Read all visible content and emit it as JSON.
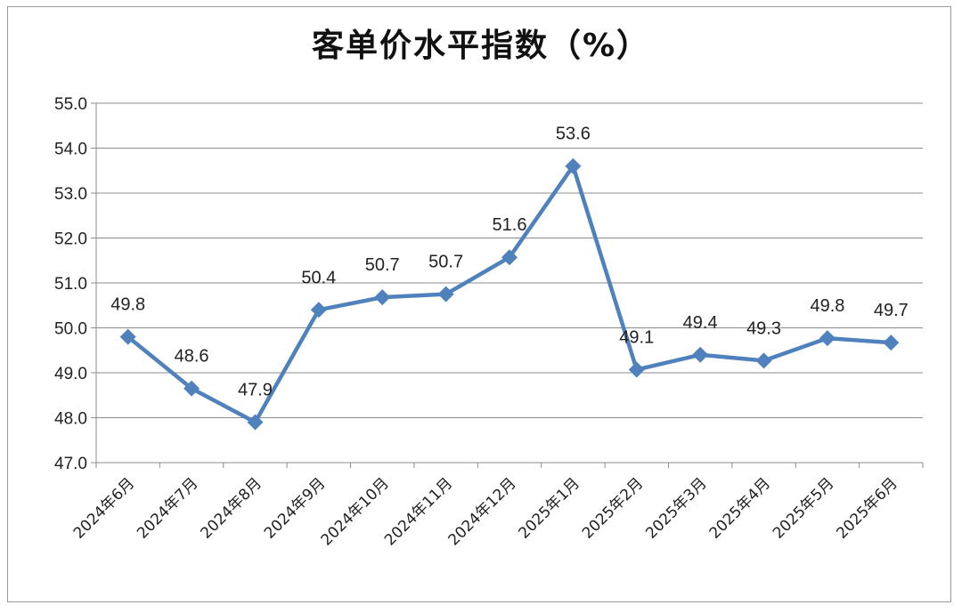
{
  "chart_data": {
    "type": "line",
    "title": "客单价水平指数（%）",
    "categories": [
      "2024年6月",
      "2024年7月",
      "2024年8月",
      "2024年9月",
      "2024年10月",
      "2024年11月",
      "2024年12月",
      "2025年1月",
      "2025年2月",
      "2025年3月",
      "2025年4月",
      "2025年5月",
      "2025年6月"
    ],
    "series": [
      {
        "values": [
          49.8,
          48.6,
          47.9,
          50.4,
          50.7,
          50.7,
          51.6,
          53.6,
          49.1,
          49.4,
          49.3,
          49.8,
          49.7
        ],
        "plotted": [
          49.8,
          48.65,
          47.9,
          50.4,
          50.68,
          50.75,
          51.57,
          53.6,
          49.07,
          49.4,
          49.27,
          49.77,
          49.67
        ],
        "color": "#4f81bd"
      }
    ],
    "ylim": [
      47.0,
      55.0
    ],
    "yticks": [
      "47.0",
      "48.0",
      "49.0",
      "50.0",
      "51.0",
      "52.0",
      "53.0",
      "54.0",
      "55.0"
    ],
    "xlabel": "",
    "ylabel": "",
    "grid": true,
    "legend": "none",
    "marker": "diamond"
  }
}
